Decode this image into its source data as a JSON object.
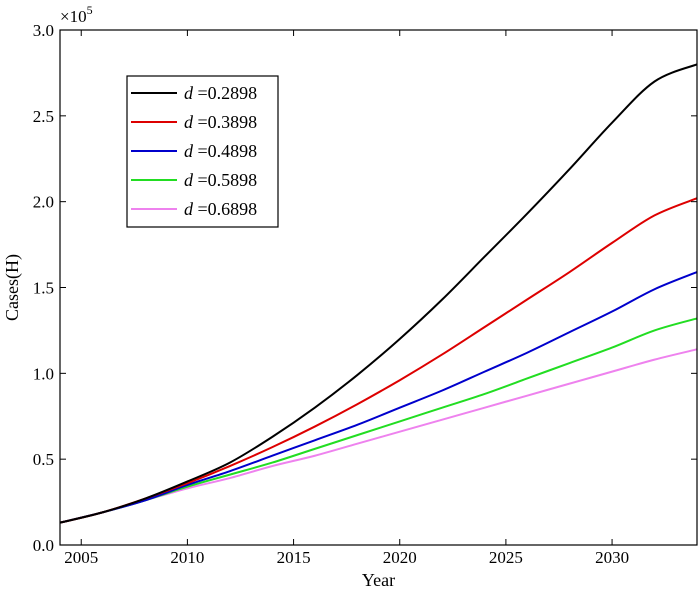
{
  "chart_data": {
    "type": "line",
    "title": "",
    "xlabel": "Year",
    "ylabel": "Cases(H)",
    "multiplier_label": "×10",
    "multiplier_exp": "5",
    "xlim": [
      2004,
      2034
    ],
    "ylim": [
      0,
      3.0
    ],
    "xticks": [
      2005,
      2010,
      2015,
      2020,
      2025,
      2030
    ],
    "xtick_labels": [
      "2005",
      "2010",
      "2015",
      "2020",
      "2025",
      "2030"
    ],
    "yticks": [
      0,
      0.5,
      1.0,
      1.5,
      2.0,
      2.5,
      3.0
    ],
    "ytick_labels": [
      "0.0",
      "0.5",
      "1.0",
      "1.5",
      "2.0",
      "2.5",
      "3.0"
    ],
    "grid": false,
    "legend_position": "top-left",
    "x": [
      2004,
      2006,
      2008,
      2010,
      2012,
      2014,
      2016,
      2018,
      2020,
      2022,
      2024,
      2026,
      2028,
      2030,
      2032,
      2034
    ],
    "series": [
      {
        "name": "d =0.2898",
        "var": "d",
        "eq": "=0.2898",
        "color": "#000000",
        "values": [
          0.13,
          0.19,
          0.27,
          0.37,
          0.48,
          0.63,
          0.8,
          0.99,
          1.2,
          1.43,
          1.68,
          1.93,
          2.19,
          2.46,
          2.7,
          2.8
        ]
      },
      {
        "name": "d =0.3898",
        "var": "d",
        "eq": "=0.3898",
        "color": "#dd0000",
        "values": [
          0.13,
          0.19,
          0.27,
          0.36,
          0.46,
          0.57,
          0.69,
          0.82,
          0.96,
          1.11,
          1.27,
          1.43,
          1.59,
          1.76,
          1.92,
          2.02
        ]
      },
      {
        "name": "d =0.4898",
        "var": "d",
        "eq": "=0.4898",
        "color": "#0000cc",
        "values": [
          0.13,
          0.19,
          0.26,
          0.35,
          0.43,
          0.52,
          0.61,
          0.7,
          0.8,
          0.9,
          1.01,
          1.12,
          1.24,
          1.36,
          1.49,
          1.59
        ]
      },
      {
        "name": "d =0.5898",
        "var": "d",
        "eq": "=0.5898",
        "color": "#22dd22",
        "values": [
          0.13,
          0.19,
          0.26,
          0.34,
          0.41,
          0.48,
          0.56,
          0.64,
          0.72,
          0.8,
          0.88,
          0.97,
          1.06,
          1.15,
          1.25,
          1.32
        ]
      },
      {
        "name": "d =0.6898",
        "var": "d",
        "eq": "=0.6898",
        "color": "#ee82ee",
        "values": [
          0.13,
          0.19,
          0.26,
          0.33,
          0.39,
          0.46,
          0.52,
          0.59,
          0.66,
          0.73,
          0.8,
          0.87,
          0.94,
          1.01,
          1.08,
          1.14
        ]
      }
    ]
  }
}
